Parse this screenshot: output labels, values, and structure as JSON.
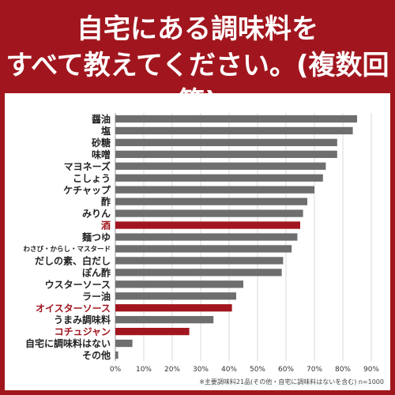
{
  "header": {
    "title": "自宅にある調味料を\nすべて教えてください。(複数回答)"
  },
  "chart_data": {
    "type": "bar",
    "orientation": "horizontal",
    "categories": [
      "醤油",
      "塩",
      "砂糖",
      "味噌",
      "マヨネーズ",
      "こしょう",
      "ケチャップ",
      "酢",
      "みりん",
      "酒",
      "麺つゆ",
      "わさび・からし・マスタード",
      "だしの素、白だし",
      "ぽん酢",
      "ウスターソース",
      "ラー油",
      "オイスターソース",
      "うまみ調味料",
      "コチュジャン",
      "自宅に調味料はない",
      "その他"
    ],
    "values": [
      85,
      83.5,
      78,
      78,
      74,
      73,
      70,
      67.5,
      66,
      65,
      64,
      62,
      59,
      58.5,
      45,
      42.5,
      41,
      34.5,
      26,
      6,
      1
    ],
    "highlighted": [
      "酒",
      "オイスターソース",
      "コチュジャン"
    ],
    "xlim": [
      0,
      90
    ],
    "xticks": [
      "0%",
      "10%",
      "20%",
      "30%",
      "40%",
      "50%",
      "60%",
      "70%",
      "80%",
      "90%"
    ],
    "grid": true,
    "colors": {
      "default": "#6e6e6e",
      "highlight": "#a1161e",
      "grid": "#d9d9d9"
    }
  },
  "footnote": "※主要調味料21品(その他・自宅に調味料はないを含む) n=1000"
}
